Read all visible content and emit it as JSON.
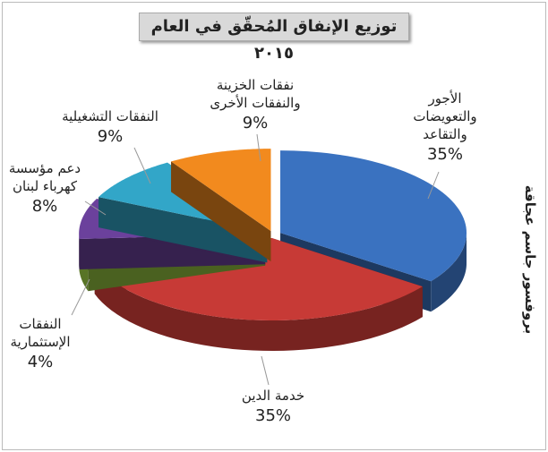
{
  "chart_data": {
    "type": "pie",
    "title": "توزيع الإنفاق المُحقّق في العام ٢٠١٥",
    "annotation": "بروفسور جاسم عجاقة",
    "categories": [
      "الأجور\nوالتعويضات\nوالتقاعد",
      "خدمة الدين",
      "النفقات\nالإستثمارية",
      "دعم مؤسسة\nكهرباء لبنان",
      "النفقات التشغيلية",
      "نفقات الخزينة\nوالنفقات الأخرى"
    ],
    "values": [
      35,
      35,
      4,
      8,
      9,
      9
    ],
    "value_labels": [
      "35%",
      "35%",
      "4%",
      "8%",
      "9%",
      "9%"
    ],
    "colors": [
      "#3a72c0",
      "#c73a36",
      "#93c13f",
      "#6b419c",
      "#32a6c8",
      "#f28a1e"
    ]
  }
}
